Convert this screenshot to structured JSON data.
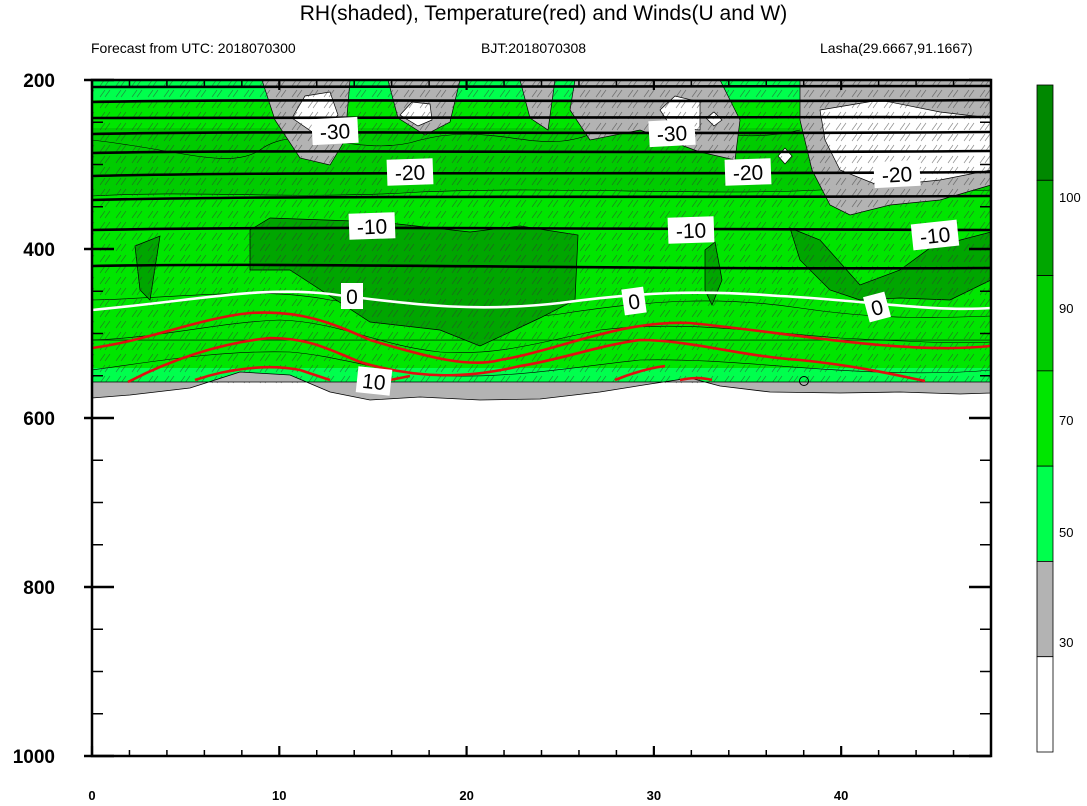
{
  "header": {
    "title": "RH(shaded), Temperature(red) and Winds(U and W)",
    "left": "Forecast from UTC: 2018070300",
    "center": "BJT:2018070308",
    "right": "Lasha(29.6667,91.1667)"
  },
  "chart_data": {
    "type": "contour",
    "title": "RH(shaded), Temperature(red) and Winds(U and W)",
    "x_axis": {
      "ticks": [
        "0",
        "10",
        "20",
        "30",
        "40"
      ],
      "range": [
        0,
        48
      ]
    },
    "y_axis": {
      "ticks": [
        "200",
        "400",
        "600",
        "800",
        "1000"
      ],
      "range": [
        200,
        1000
      ],
      "inverted": true
    },
    "colorbar": {
      "levels": [
        "30",
        "50",
        "70",
        "90",
        "100"
      ],
      "colors": [
        "#ffffff",
        "#b3b3b3",
        "#00ff4d",
        "#00e600",
        "#00cc00",
        "#00a600",
        "#008800"
      ]
    },
    "temperature_labels": [
      "-30",
      "-30",
      "-20",
      "-20",
      "-20",
      "-10",
      "-10",
      "-10",
      "0",
      "0",
      "0",
      "10"
    ],
    "colors": {
      "temperature": "#e01010",
      "zero_line": "#ffffff",
      "isotherm": "#000000",
      "terrain": "#b3b3b3"
    }
  }
}
